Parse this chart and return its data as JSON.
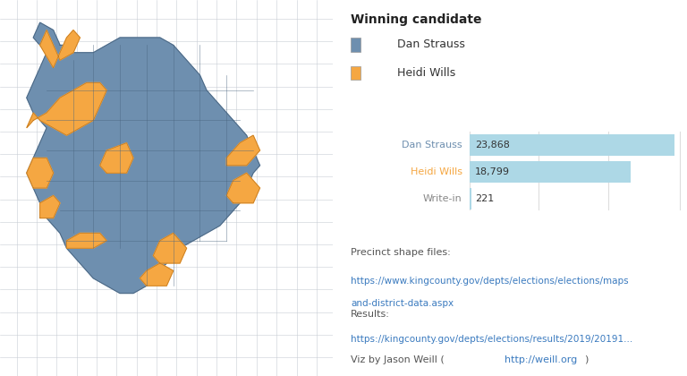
{
  "figure_bg": "#ffffff",
  "map_bg": "#dde3ea",
  "panel_bg": "#ffffff",
  "legend_title": "Winning candidate",
  "legend_items": [
    {
      "label": "Dan Strauss",
      "color": "#6e8faf"
    },
    {
      "label": "Heidi Wills",
      "color": "#f5a742"
    }
  ],
  "bar_candidates": [
    "Dan Strauss",
    "Heidi Wills",
    "Write-in"
  ],
  "bar_values": [
    23868,
    18799,
    221
  ],
  "bar_labels": [
    "23,868",
    "18,799",
    "221"
  ],
  "bar_color": "#add8e6",
  "bar_max": 24500,
  "label_colors": [
    "#6e8faf",
    "#f5a742",
    "#888888"
  ],
  "precinct_text": "Precinct shape files:",
  "precinct_link1": "https://www.kingcounty.gov/depts/elections/elections/maps",
  "precinct_link2": "and-district-data.aspx",
  "results_text": "Results:",
  "results_link": "https://kingcounty.gov/depts/elections/results/2019/20191...",
  "viz_normal": "Viz by Jason Weill (",
  "viz_link": "http://weill.org",
  "viz_close": ")",
  "map_blue": "#6e8faf",
  "map_orange": "#f5a742",
  "map_outline": "#4a6580",
  "street_color": "#c8cdd4",
  "grid_color": "#d8dde4"
}
